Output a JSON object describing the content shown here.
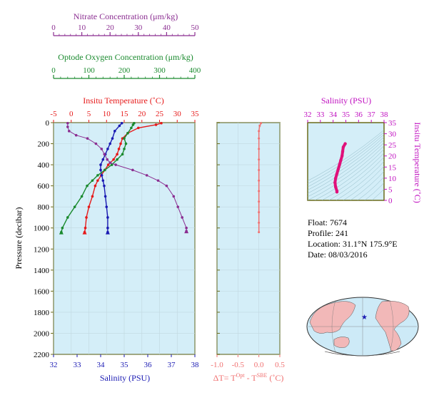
{
  "colors": {
    "nitrate": "#8b2e91",
    "oxygen": "#1a8a2e",
    "temperature": "#e61919",
    "salinity": "#1a1ab3",
    "delta": "#f07070",
    "ts_trace": "#e0107a",
    "ts_axis": "#c010c0",
    "plot_bg": "#d4eef8",
    "frame": "#6b6b1a",
    "land": "#f2b8b8",
    "ocean": "#cdeaf7"
  },
  "float_info": {
    "float": "Float:  7674",
    "profile": "Profile:  241",
    "location": "Location:  31.1°N  175.9°E",
    "date": "Date:  08/03/2016"
  },
  "chart_data": [
    {
      "type": "line",
      "panel": "profiles",
      "ylabel": "Pressure (decibar)",
      "ylim": [
        2200,
        0
      ],
      "yticks": [
        0,
        200,
        400,
        600,
        800,
        1000,
        1200,
        1400,
        1600,
        1800,
        2000,
        2200
      ],
      "axes": {
        "nitrate": {
          "label": "Nitrate Concentration (μm/kg)",
          "range": [
            0,
            50
          ],
          "ticks": [
            "0",
            "10",
            "20",
            "30",
            "40",
            "50"
          ]
        },
        "oxygen": {
          "label": "Optode Oxygen Concentration (μm/kg)",
          "range": [
            0,
            400
          ],
          "ticks": [
            "0",
            "100",
            "200",
            "300",
            "400"
          ]
        },
        "temperature": {
          "label": "Insitu Temperature (˚C)",
          "range": [
            -5,
            35
          ],
          "ticks": [
            "-5",
            "0",
            "5",
            "10",
            "15",
            "20",
            "25",
            "30",
            "35"
          ]
        },
        "salinity": {
          "label": "Salinity (PSU)",
          "range": [
            32,
            38
          ],
          "ticks": [
            "32",
            "33",
            "34",
            "35",
            "36",
            "37",
            "38"
          ]
        }
      },
      "series": [
        {
          "key": "temperature",
          "points": [
            [
              25.5,
              5
            ],
            [
              24,
              20
            ],
            [
              19,
              50
            ],
            [
              16,
              100
            ],
            [
              14.5,
              150
            ],
            [
              14,
              200
            ],
            [
              13.5,
              250
            ],
            [
              13,
              300
            ],
            [
              12,
              350
            ],
            [
              10.5,
              400
            ],
            [
              9.5,
              450
            ],
            [
              8.5,
              500
            ],
            [
              7.5,
              550
            ],
            [
              6.8,
              600
            ],
            [
              6,
              700
            ],
            [
              5,
              800
            ],
            [
              4.3,
              900
            ],
            [
              4,
              1000
            ],
            [
              3.8,
              1040
            ]
          ]
        },
        {
          "key": "salinity",
          "points": [
            [
              34.9,
              5
            ],
            [
              34.8,
              30
            ],
            [
              34.6,
              80
            ],
            [
              34.5,
              150
            ],
            [
              34.4,
              200
            ],
            [
              34.3,
              250
            ],
            [
              34.2,
              300
            ],
            [
              34.1,
              350
            ],
            [
              34.0,
              400
            ],
            [
              34.0,
              450
            ],
            [
              34.05,
              500
            ],
            [
              34.1,
              550
            ],
            [
              34.15,
              600
            ],
            [
              34.2,
              700
            ],
            [
              34.25,
              800
            ],
            [
              34.3,
              900
            ],
            [
              34.3,
              1000
            ],
            [
              34.3,
              1040
            ]
          ]
        },
        {
          "key": "oxygen",
          "points": [
            [
              228,
              5
            ],
            [
              225,
              20
            ],
            [
              220,
              50
            ],
            [
              210,
              100
            ],
            [
              200,
              150
            ],
            [
              205,
              200
            ],
            [
              200,
              250
            ],
            [
              195,
              300
            ],
            [
              180,
              350
            ],
            [
              165,
              400
            ],
            [
              145,
              450
            ],
            [
              125,
              500
            ],
            [
              110,
              550
            ],
            [
              95,
              600
            ],
            [
              80,
              700
            ],
            [
              60,
              800
            ],
            [
              40,
              900
            ],
            [
              25,
              1000
            ],
            [
              22,
              1040
            ]
          ]
        },
        {
          "key": "nitrate",
          "points": [
            [
              5,
              5
            ],
            [
              5,
              40
            ],
            [
              5.5,
              80
            ],
            [
              8,
              120
            ],
            [
              12,
              150
            ],
            [
              15,
              200
            ],
            [
              17,
              250
            ],
            [
              18,
              300
            ],
            [
              19,
              350
            ],
            [
              20,
              380
            ],
            [
              22,
              400
            ],
            [
              28,
              450
            ],
            [
              33,
              500
            ],
            [
              37,
              550
            ],
            [
              40,
              600
            ],
            [
              42.5,
              700
            ],
            [
              44,
              800
            ],
            [
              45.5,
              900
            ],
            [
              47,
              1000
            ],
            [
              47,
              1030
            ]
          ]
        }
      ]
    },
    {
      "type": "line",
      "panel": "delta",
      "xlabel": "ΔT= T",
      "xlabel_sup1": "Opt",
      "xlabel_mid": " - T",
      "xlabel_sup2": "SBE",
      "xlabel_unit": " (˚C)",
      "xlim": [
        -1.0,
        0.5
      ],
      "xticks": [
        "-1.0",
        "-0.5",
        "0.0",
        "0.5"
      ],
      "ylim": [
        2200,
        0
      ],
      "points": [
        [
          0.05,
          5
        ],
        [
          0.02,
          30
        ],
        [
          0.0,
          80
        ],
        [
          0.0,
          150
        ],
        [
          0.0,
          250
        ],
        [
          0.0,
          350
        ],
        [
          0.0,
          450
        ],
        [
          0.0,
          550
        ],
        [
          0.0,
          650
        ],
        [
          0.0,
          750
        ],
        [
          0.0,
          850
        ],
        [
          0.0,
          950
        ],
        [
          0.0,
          1040
        ]
      ]
    },
    {
      "type": "line",
      "panel": "ts",
      "xlabel": "Salinity (PSU)",
      "ylabel": "Insitu Temperature (˚C)",
      "xlim": [
        32,
        38
      ],
      "ylim": [
        0,
        35
      ],
      "xticks": [
        "32",
        "33",
        "34",
        "35",
        "36",
        "37",
        "38"
      ],
      "yticks": [
        "0",
        "5",
        "10",
        "15",
        "20",
        "25",
        "30",
        "35"
      ],
      "points": [
        [
          34.95,
          25.5
        ],
        [
          34.8,
          24
        ],
        [
          34.75,
          22
        ],
        [
          34.7,
          20
        ],
        [
          34.6,
          18
        ],
        [
          34.5,
          16
        ],
        [
          34.4,
          14
        ],
        [
          34.3,
          12
        ],
        [
          34.2,
          10
        ],
        [
          34.15,
          8
        ],
        [
          34.2,
          6
        ],
        [
          34.3,
          4.2
        ],
        [
          34.3,
          3.8
        ]
      ]
    }
  ]
}
